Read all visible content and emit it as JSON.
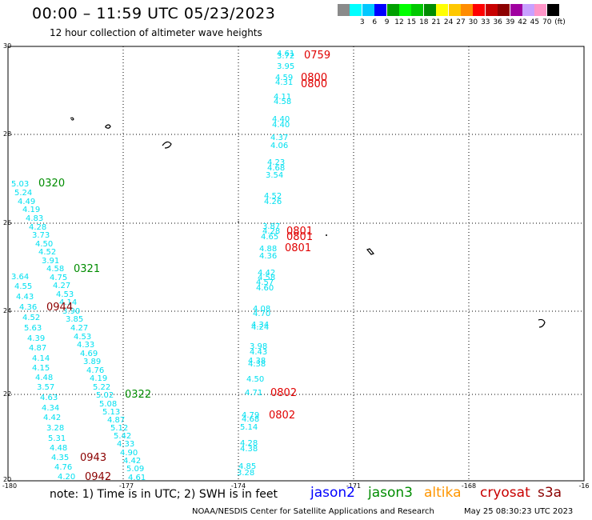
{
  "header": {
    "title": "00:00 – 11:59 UTC 05/23/2023",
    "subtitle": "12 hour collection of altimeter wave heights"
  },
  "color_scale": {
    "unit": "(ft)",
    "bins": [
      {
        "label": "",
        "color": "#8a8a8a"
      },
      {
        "label": "3",
        "color": "#00ffff"
      },
      {
        "label": "6",
        "color": "#00c8ff"
      },
      {
        "label": "9",
        "color": "#0000ff"
      },
      {
        "label": "12",
        "color": "#00a000"
      },
      {
        "label": "15",
        "color": "#00ff00"
      },
      {
        "label": "18",
        "color": "#00c800"
      },
      {
        "label": "21",
        "color": "#008c00"
      },
      {
        "label": "24",
        "color": "#ffff00"
      },
      {
        "label": "27",
        "color": "#ffc800"
      },
      {
        "label": "30",
        "color": "#ff8c00"
      },
      {
        "label": "33",
        "color": "#ff0000"
      },
      {
        "label": "36",
        "color": "#c80000"
      },
      {
        "label": "39",
        "color": "#8c0000"
      },
      {
        "label": "42",
        "color": "#a000a0"
      },
      {
        "label": "45",
        "color": "#c8a0ff"
      },
      {
        "label": "70",
        "color": "#ff96c8"
      },
      {
        "label": "",
        "color": "#000000"
      }
    ]
  },
  "axes": {
    "lon_ticks": [
      "-180",
      "-177",
      "-174",
      "-171",
      "-168",
      "-16"
    ],
    "lat_ticks": [
      "30",
      "28",
      "26",
      "24",
      "22",
      "20"
    ]
  },
  "colors": {
    "swh_value": "#00e0f0",
    "jason2": "#0000ff",
    "jason3": "#008c00",
    "altika": "#ff9600",
    "cryosat": "#c80000",
    "s3a": "#8b0000",
    "time_red": "#e00000"
  },
  "tracks": {
    "west": {
      "values": [
        "5.03",
        "5.24",
        "4.49",
        "4.19",
        "4.83",
        "4.28",
        "3.73",
        "4.50",
        "4.52",
        "3.91",
        "4.58",
        "4.75",
        "3.64",
        "4.55",
        "4.27",
        "4.43",
        "4.53",
        "4.36",
        "4.14",
        "4.52",
        "3.90",
        "3.85",
        "5.63",
        "4.27",
        "4.39",
        "4.53",
        "4.87",
        "4.33",
        "4.14",
        "4.69",
        "4.15",
        "3.89",
        "4.48",
        "4.76",
        "3.57",
        "4.19",
        "4.63",
        "5.22",
        "4.34",
        "5.02",
        "4.42",
        "5.08",
        "3.28",
        "5.13",
        "5.31",
        "4.87",
        "4.48",
        "5.12",
        "4.35",
        "5.42",
        "4.76",
        "4.33",
        "4.20",
        "4.90",
        "4.42",
        "5.09",
        "4.61"
      ],
      "times": [
        "0320",
        "0321",
        "0944",
        "0322",
        "0943",
        "0942"
      ]
    },
    "east": {
      "values": [
        "4.61",
        "3.72",
        "3.95",
        "4.59",
        "4.31",
        "4.11",
        "4.58",
        "4.40",
        "4.40",
        "4.37",
        "4.06",
        "4.23",
        "4.68",
        "3.54",
        "4.52",
        "4.26",
        "3.87",
        "4.28",
        "4.65",
        "4.88",
        "4.36",
        "4.42",
        "4.58",
        "4.57",
        "4.60",
        "4.08",
        "4.70",
        "4.34",
        "4.24",
        "3.98",
        "4.43",
        "4.38",
        "4.38",
        "4.50",
        "4.71",
        "4.79",
        "4.68",
        "5.14",
        "4.28",
        "4.38",
        "4.85",
        "3.28"
      ],
      "times": [
        "0759",
        "0800",
        "0800",
        "0801",
        "0801",
        "0801",
        "0802",
        "0802"
      ]
    }
  },
  "footer": {
    "note": "note:  1) Time is in UTC;  2) SWH is in feet",
    "legend": [
      {
        "name": "jason2",
        "key": "jason2"
      },
      {
        "name": "jason3",
        "key": "jason3"
      },
      {
        "name": "altika",
        "key": "altika"
      },
      {
        "name": "cryosat",
        "key": "cryosat"
      },
      {
        "name": "s3a",
        "key": "s3a"
      }
    ],
    "credit": "NOAA/NESDIS Center for Satellite Applications and Research",
    "timestamp": "May 25 08:30:23 UTC 2023"
  }
}
